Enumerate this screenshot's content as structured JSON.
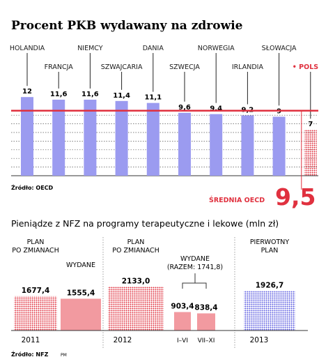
{
  "chart_data": [
    {
      "type": "bar",
      "title": "Procent PKB wydawany na zdrowie",
      "categories": [
        "HOLANDIA",
        "FRANCJA",
        "NIEMCY",
        "SZWAJCARIA",
        "DANIA",
        "SZWECJA",
        "NORWEGIA",
        "IRLANDIA",
        "SŁOWACJA",
        "POLSKA"
      ],
      "values": [
        12,
        11.6,
        11.6,
        11.4,
        11.1,
        9.6,
        9.4,
        9.2,
        9,
        7
      ],
      "value_labels": [
        "12",
        "11,6",
        "11,6",
        "11,4",
        "11,1",
        "9,6",
        "9,4",
        "9,2",
        "9",
        "7"
      ],
      "highlight": "POLSKA",
      "highlight_marker": "•",
      "reference_line": {
        "label": "ŚREDNIA OECD",
        "value": 9.5,
        "value_label": "9,5"
      },
      "source": "Źródło: OECD",
      "colors": {
        "bar": "#9b9bf0",
        "highlight": "#e0313f",
        "reference": "#e0313f",
        "grid": "#555555"
      }
    },
    {
      "type": "bar",
      "title": "Pieniądze z NFZ na programy terapeutyczne i lekowe (mln zł)",
      "groups": [
        "2011",
        "2012",
        "2013"
      ],
      "bars": [
        {
          "group": "2011",
          "label": "PLAN PO ZMIANACH",
          "value": 1677.4,
          "value_label": "1677,4",
          "style": "dotted"
        },
        {
          "group": "2011",
          "label": "WYDANE",
          "value": 1555.4,
          "value_label": "1555,4",
          "style": "solid"
        },
        {
          "group": "2012",
          "label": "PLAN PO ZMIANACH",
          "value": 2133.0,
          "value_label": "2133,0",
          "style": "dotted"
        },
        {
          "group": "2012",
          "label": "I–VI",
          "value": 903.4,
          "value_label": "903,4",
          "style": "solid"
        },
        {
          "group": "2012",
          "label": "VII–XI",
          "value": 838.4,
          "value_label": "838,4",
          "style": "solid"
        },
        {
          "group": "2013",
          "label": "PIERWOTNY PLAN",
          "value": 1926.7,
          "value_label": "1926,7",
          "style": "dotted-blue"
        }
      ],
      "annotation": "WYDANE (RAZEM: 1741,8)",
      "source": "Źródło: NFZ",
      "credit": "PM",
      "colors": {
        "red": "#e0313f",
        "pink": "#f29aa0",
        "blue": "#5c5ce0"
      }
    }
  ]
}
